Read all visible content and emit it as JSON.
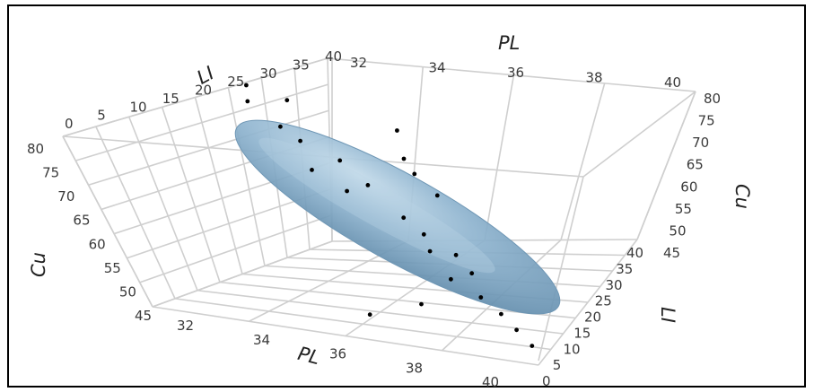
{
  "chart_data": {
    "type": "scatter",
    "subtype": "3d-scatter-with-confidence-ellipsoid",
    "axes": {
      "x": {
        "label": "PL",
        "ticks": [
          "32",
          "34",
          "36",
          "38",
          "40"
        ],
        "range": [
          32,
          40
        ]
      },
      "y": {
        "label": "LI",
        "ticks": [
          "0",
          "5",
          "10",
          "15",
          "20",
          "25",
          "30",
          "35",
          "40"
        ],
        "range": [
          0,
          40
        ]
      },
      "z": {
        "label": "Cu",
        "ticks": [
          "45",
          "50",
          "55",
          "60",
          "65",
          "70",
          "75",
          "80"
        ],
        "range": [
          45,
          80
        ]
      },
      "top_x_ticks": [
        "32",
        "34",
        "36",
        "38",
        "40"
      ],
      "left_y_ticks": [
        "0",
        "5",
        "10",
        "15",
        "20",
        "25",
        "30",
        "35",
        "40"
      ],
      "left_z_ticks": [
        "80",
        "75",
        "70",
        "65",
        "60",
        "55",
        "50",
        "45"
      ],
      "right_z_ticks": [
        "80",
        "75",
        "70",
        "65",
        "60",
        "55",
        "50",
        "45"
      ],
      "right_y_ticks": [
        "40",
        "35",
        "30",
        "25",
        "20",
        "15",
        "10",
        "5",
        "0"
      ],
      "bottom_x_ticks": [
        "32",
        "34",
        "36",
        "38",
        "40"
      ],
      "right_extra_label": "40"
    },
    "ellipsoid_color": "#7fa6c4",
    "points": [
      {
        "PL": 32.4,
        "LI": 36,
        "Cu": 79
      },
      {
        "PL": 32.6,
        "LI": 33,
        "Cu": 77
      },
      {
        "PL": 32.9,
        "LI": 38,
        "Cu": 76
      },
      {
        "PL": 33.4,
        "LI": 30,
        "Cu": 74
      },
      {
        "PL": 33.8,
        "LI": 29,
        "Cu": 72
      },
      {
        "PL": 34.2,
        "LI": 25,
        "Cu": 68
      },
      {
        "PL": 34.7,
        "LI": 27,
        "Cu": 70
      },
      {
        "PL": 35.1,
        "LI": 22,
        "Cu": 66
      },
      {
        "PL": 35.4,
        "LI": 24,
        "Cu": 67
      },
      {
        "PL": 35.8,
        "LI": 30,
        "Cu": 71
      },
      {
        "PL": 36.1,
        "LI": 28,
        "Cu": 69
      },
      {
        "PL": 36.3,
        "LI": 20,
        "Cu": 63
      },
      {
        "PL": 36.6,
        "LI": 26,
        "Cu": 66
      },
      {
        "PL": 36.8,
        "LI": 18,
        "Cu": 61
      },
      {
        "PL": 37.1,
        "LI": 15,
        "Cu": 59
      },
      {
        "PL": 37.4,
        "LI": 17,
        "Cu": 58
      },
      {
        "PL": 37.6,
        "LI": 12,
        "Cu": 55
      },
      {
        "PL": 37.9,
        "LI": 14,
        "Cu": 56
      },
      {
        "PL": 38.3,
        "LI": 10,
        "Cu": 53
      },
      {
        "PL": 38.8,
        "LI": 8,
        "Cu": 51
      },
      {
        "PL": 39.2,
        "LI": 6,
        "Cu": 49
      },
      {
        "PL": 39.6,
        "LI": 4,
        "Cu": 47
      },
      {
        "PL": 37.0,
        "LI": 9,
        "Cu": 50
      },
      {
        "PL": 36.2,
        "LI": 5,
        "Cu": 48
      },
      {
        "PL": 35.5,
        "LI": 34,
        "Cu": 75
      }
    ]
  }
}
